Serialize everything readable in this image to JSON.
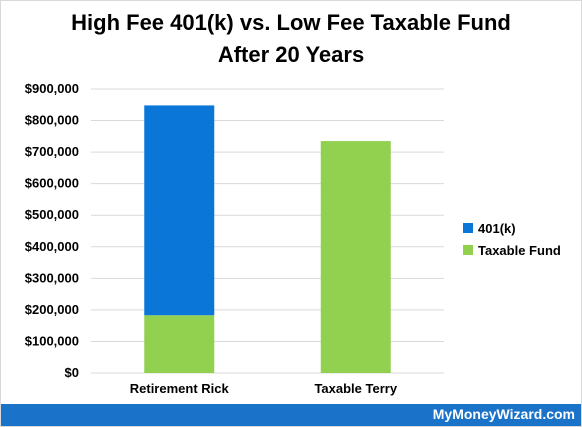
{
  "chart_data": {
    "type": "bar",
    "stacked": true,
    "title_lines": [
      "High Fee 401(k) vs. Low Fee Taxable Fund",
      "After 20 Years"
    ],
    "categories": [
      "Retirement Rick",
      "Taxable Terry"
    ],
    "series": [
      {
        "name": "Taxable Fund",
        "color": "#92d050",
        "values": [
          183000,
          735000
        ]
      },
      {
        "name": "401(k)",
        "color": "#0a76d8",
        "values": [
          665000,
          0
        ]
      }
    ],
    "legend_order": [
      "401(k)",
      "Taxable Fund"
    ],
    "ylim": [
      0,
      900000
    ],
    "yticks": [
      0,
      100000,
      200000,
      300000,
      400000,
      500000,
      600000,
      700000,
      800000,
      900000
    ],
    "ytick_labels": [
      "$0",
      "$100,000",
      "$200,000",
      "$300,000",
      "$400,000",
      "$500,000",
      "$600,000",
      "$700,000",
      "$800,000",
      "$900,000"
    ],
    "grid": true,
    "legend_position": "right"
  },
  "footer": {
    "text": "MyMoneyWizard.com",
    "color": "#1a73c9"
  }
}
